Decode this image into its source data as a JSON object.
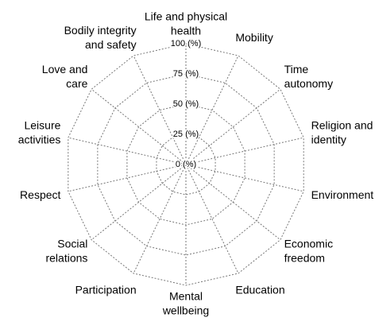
{
  "chart_data": {
    "type": "radar",
    "categories": [
      [
        "Life and physical",
        "health"
      ],
      [
        "Mobility"
      ],
      [
        "Time",
        "autonomy"
      ],
      [
        "Religion and",
        "identity"
      ],
      [
        "Environment"
      ],
      [
        "Economic",
        "freedom"
      ],
      [
        "Education"
      ],
      [
        "Mental",
        "wellbeing"
      ],
      [
        "Participation"
      ],
      [
        "Social",
        "relations"
      ],
      [
        "Respect"
      ],
      [
        "Leisure",
        "activities"
      ],
      [
        "Love and",
        "care"
      ],
      [
        "Bodily integrity",
        "and safety"
      ]
    ],
    "ylim": [
      0,
      100
    ],
    "yticks": [
      {
        "value": 0,
        "label": "0 (%)"
      },
      {
        "value": 25,
        "label": "25 (%)"
      },
      {
        "value": 50,
        "label": "50 (%)"
      },
      {
        "value": 75,
        "label": "75 (%)"
      },
      {
        "value": 100,
        "label": "100 (%)"
      }
    ],
    "grid": true
  }
}
